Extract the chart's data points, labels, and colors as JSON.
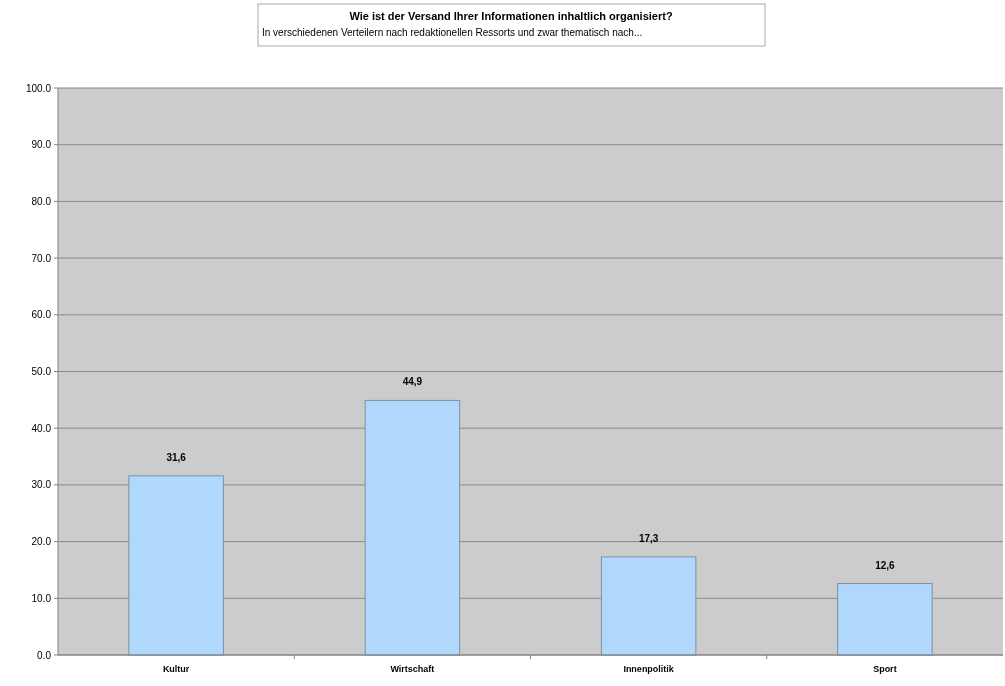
{
  "chart_data": {
    "type": "bar",
    "title": "Wie ist der Versand Ihrer Informationen inhaltlich organisiert?",
    "subtitle": "In verschiedenen Verteilern nach redaktionellen Ressorts und zwar thematisch nach...",
    "categories": [
      "Kultur",
      "Wirtschaft",
      "Innenpolitik",
      "Sport"
    ],
    "values": [
      31.6,
      44.9,
      17.3,
      12.6
    ],
    "value_labels": [
      "31,6",
      "44,9",
      "17,3",
      "12,6"
    ],
    "color": "#b0d8fc",
    "ylim": [
      0,
      100
    ],
    "yticks": [
      {
        "value": 0,
        "label": "0.0"
      },
      {
        "value": 10,
        "label": "10.0"
      },
      {
        "value": 20,
        "label": "20.0"
      },
      {
        "value": 30,
        "label": "30.0"
      },
      {
        "value": 40,
        "label": "40.0"
      },
      {
        "value": 50,
        "label": "50.0"
      },
      {
        "value": 60,
        "label": "60.0"
      },
      {
        "value": 70,
        "label": "70.0"
      },
      {
        "value": 80,
        "label": "80.0"
      },
      {
        "value": 90,
        "label": "90.0"
      },
      {
        "value": 100,
        "label": "100.0"
      }
    ],
    "grid": "y"
  }
}
